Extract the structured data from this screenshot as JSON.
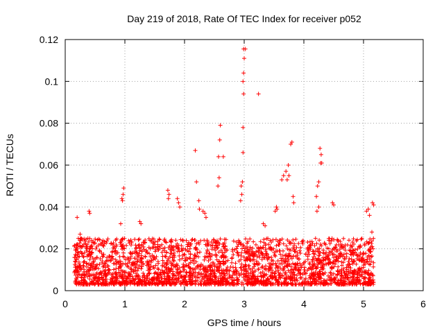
{
  "chart_data": {
    "type": "scatter",
    "title": "Day 219 of 2018, Rate Of TEC Index for receiver p052",
    "xlabel": "GPS time / hours",
    "ylabel": "ROTI / TECUs",
    "xlim": [
      0,
      6
    ],
    "ylim": [
      0,
      0.12
    ],
    "xticks": [
      0,
      1,
      2,
      3,
      4,
      5,
      6
    ],
    "xtick_labels": [
      "0",
      "1",
      "2",
      "3",
      "4",
      "5",
      "6"
    ],
    "yticks": [
      0,
      0.02,
      0.04,
      0.06,
      0.08,
      0.1,
      0.12
    ],
    "ytick_labels": [
      "0",
      "0.02",
      "0.04",
      "0.06",
      "0.08",
      "0.1",
      "0.12"
    ],
    "grid": true,
    "marker": "plus",
    "color": "#ff0000",
    "series": [
      {
        "name": "ROTI",
        "points": [
          [
            0.2,
            0.035
          ],
          [
            0.22,
            0.025
          ],
          [
            0.25,
            0.027
          ],
          [
            0.2,
            0.02
          ],
          [
            0.18,
            0.015
          ],
          [
            0.4,
            0.038
          ],
          [
            0.41,
            0.037
          ],
          [
            0.38,
            0.025
          ],
          [
            0.98,
            0.049
          ],
          [
            0.97,
            0.046
          ],
          [
            0.95,
            0.044
          ],
          [
            0.96,
            0.043
          ],
          [
            0.93,
            0.032
          ],
          [
            1.25,
            0.033
          ],
          [
            1.27,
            0.032
          ],
          [
            1.72,
            0.048
          ],
          [
            1.74,
            0.046
          ],
          [
            1.73,
            0.044
          ],
          [
            1.88,
            0.044
          ],
          [
            1.9,
            0.042
          ],
          [
            1.92,
            0.04
          ],
          [
            2.18,
            0.067
          ],
          [
            2.2,
            0.052
          ],
          [
            2.24,
            0.043
          ],
          [
            2.25,
            0.039
          ],
          [
            2.31,
            0.038
          ],
          [
            2.34,
            0.037
          ],
          [
            2.36,
            0.035
          ],
          [
            2.6,
            0.079
          ],
          [
            2.59,
            0.072
          ],
          [
            2.57,
            0.064
          ],
          [
            2.65,
            0.064
          ],
          [
            2.58,
            0.054
          ],
          [
            2.56,
            0.05
          ],
          [
            2.99,
            0.1155
          ],
          [
            3.02,
            0.1155
          ],
          [
            3.0,
            0.111
          ],
          [
            2.99,
            0.104
          ],
          [
            2.98,
            0.1
          ],
          [
            2.99,
            0.094
          ],
          [
            2.98,
            0.078
          ],
          [
            2.98,
            0.066
          ],
          [
            2.97,
            0.052
          ],
          [
            2.95,
            0.05
          ],
          [
            2.96,
            0.046
          ],
          [
            2.94,
            0.043
          ],
          [
            3.24,
            0.094
          ],
          [
            3.32,
            0.032
          ],
          [
            3.35,
            0.031
          ],
          [
            3.52,
            0.038
          ],
          [
            3.55,
            0.039
          ],
          [
            3.54,
            0.04
          ],
          [
            3.63,
            0.053
          ],
          [
            3.66,
            0.055
          ],
          [
            3.7,
            0.057
          ],
          [
            3.72,
            0.053
          ],
          [
            3.74,
            0.06
          ],
          [
            3.75,
            0.055
          ],
          [
            3.8,
            0.071
          ],
          [
            3.78,
            0.07
          ],
          [
            3.82,
            0.045
          ],
          [
            3.83,
            0.042
          ],
          [
            4.21,
            0.045
          ],
          [
            4.23,
            0.05
          ],
          [
            4.25,
            0.052
          ],
          [
            4.27,
            0.068
          ],
          [
            4.29,
            0.065
          ],
          [
            4.28,
            0.061
          ],
          [
            4.3,
            0.061
          ],
          [
            4.25,
            0.04
          ],
          [
            4.22,
            0.038
          ],
          [
            4.48,
            0.042
          ],
          [
            4.5,
            0.041
          ],
          [
            5.05,
            0.038
          ],
          [
            5.08,
            0.039
          ],
          [
            5.1,
            0.036
          ],
          [
            5.15,
            0.042
          ],
          [
            5.17,
            0.041
          ],
          [
            5.14,
            0.028
          ],
          [
            5.16,
            0.02
          ]
        ],
        "dense_band": {
          "x_start": 0.15,
          "x_end": 5.17,
          "y_floor": 0.003,
          "y_typical_max": 0.025
        }
      }
    ]
  }
}
